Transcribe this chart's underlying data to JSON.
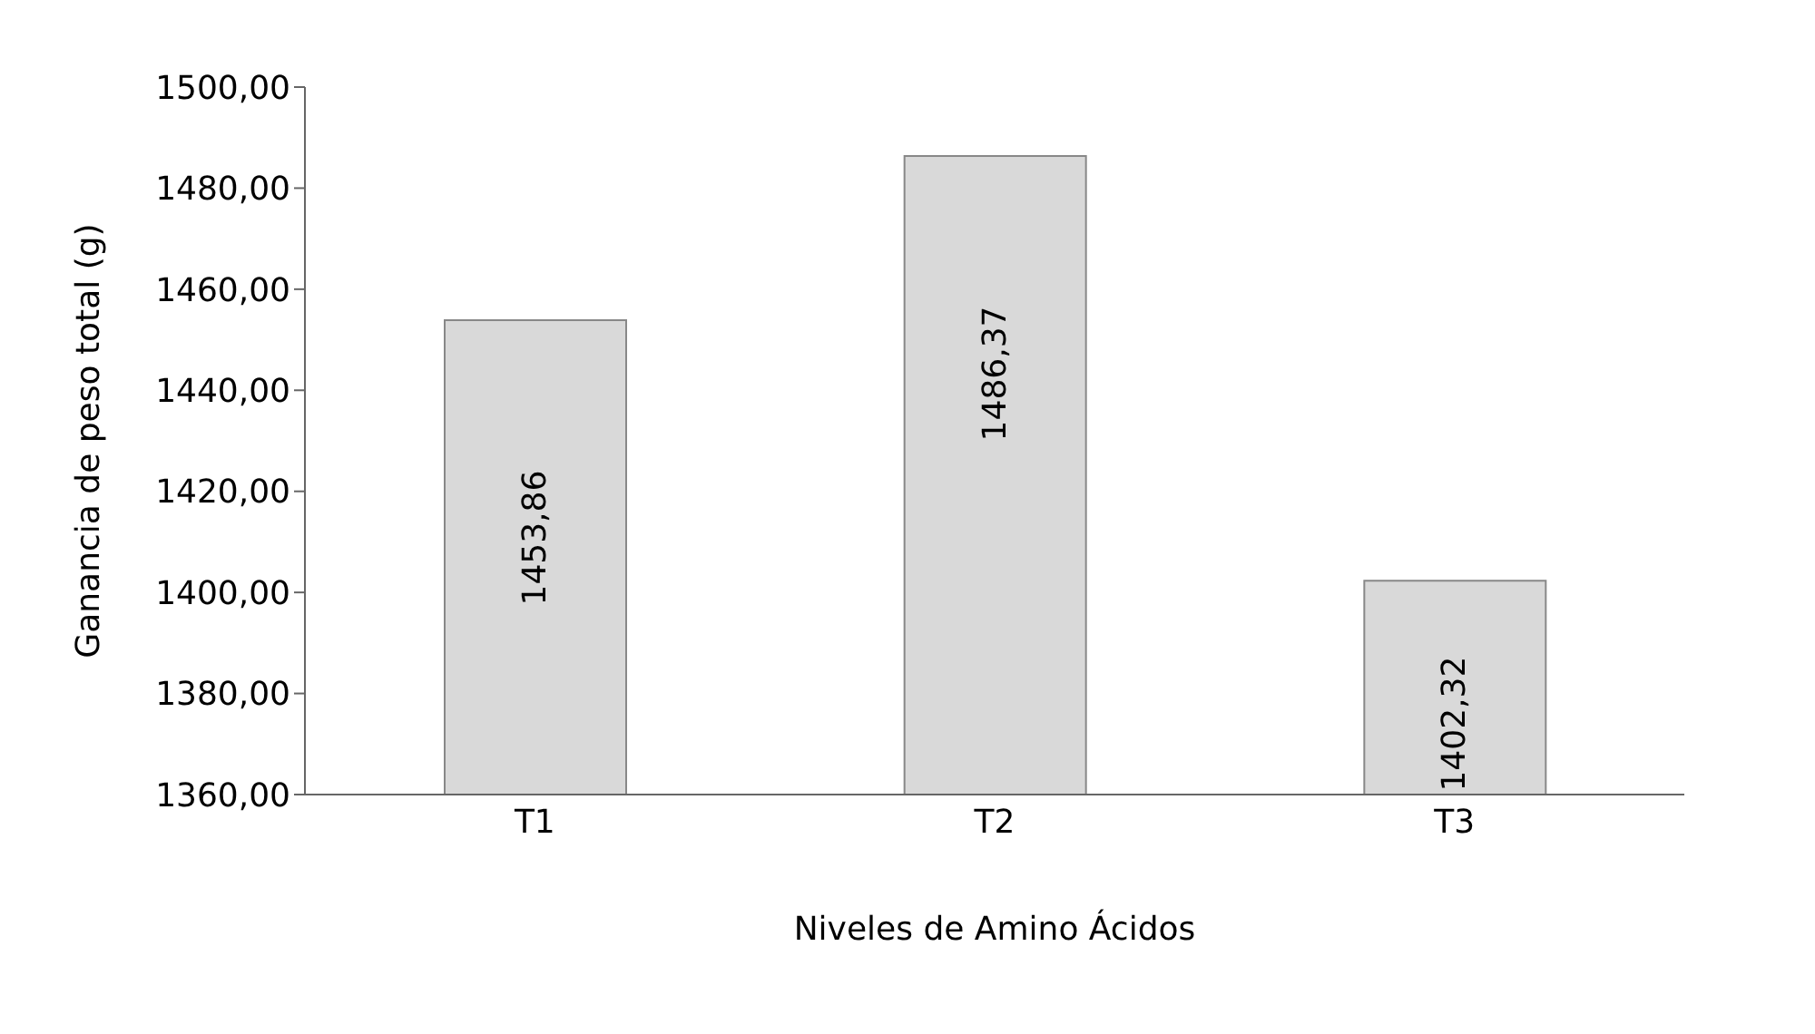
{
  "chart_data": {
    "type": "bar",
    "xlabel": "Niveles de Amino Ácidos",
    "ylabel": "Ganancia de peso total (g)",
    "categories": [
      "T1",
      "T2",
      "T3"
    ],
    "values": [
      1453.86,
      1486.37,
      1402.32
    ],
    "value_labels": [
      "1453,86",
      "1486,37",
      "1402,32"
    ],
    "color": "#d9d9d9",
    "ylim": [
      1360,
      1500
    ],
    "yticks": [
      {
        "value": 1360,
        "label": "1360,00"
      },
      {
        "value": 1380,
        "label": "1380,00"
      },
      {
        "value": 1400,
        "label": "1400,00"
      },
      {
        "value": 1420,
        "label": "1420,00"
      },
      {
        "value": 1440,
        "label": "1440,00"
      },
      {
        "value": 1460,
        "label": "1460,00"
      },
      {
        "value": 1480,
        "label": "1480,00"
      },
      {
        "value": 1500,
        "label": "1500,00"
      }
    ],
    "grid": false,
    "legend": false
  }
}
